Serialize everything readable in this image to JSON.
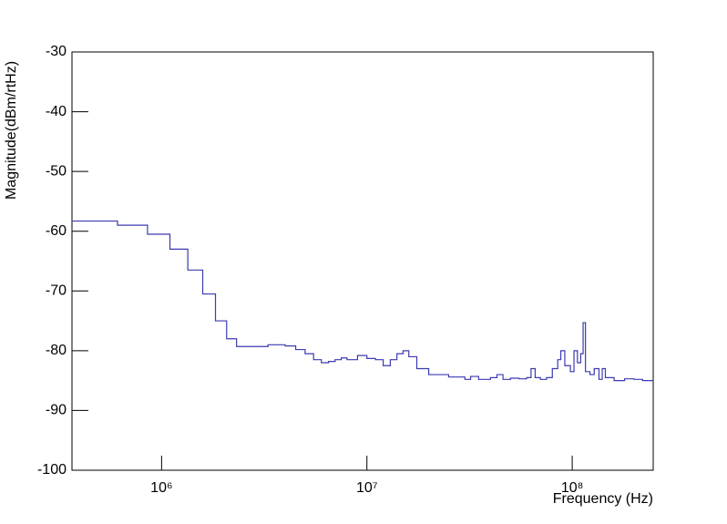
{
  "chart_data": {
    "type": "line",
    "step": true,
    "x_label": "Frequency (Hz)",
    "y_label": "Magnitude(dBm/rtHz)",
    "xlog": true,
    "xlim": [
      366000,
      248000000
    ],
    "ylim": [
      -100,
      -30
    ],
    "xticks": [
      {
        "value": 1000000,
        "label": "10⁶"
      },
      {
        "value": 10000000,
        "label": "10⁷"
      },
      {
        "value": 100000000,
        "label": "10⁸"
      }
    ],
    "yticks": [
      -100,
      -90,
      -80,
      -70,
      -60,
      -50,
      -40,
      -30
    ],
    "color": "#3b3bb0",
    "x": [
      366000,
      610000,
      854000,
      1098000,
      1342000,
      1586000,
      1830000,
      2074000,
      2318000,
      2800000,
      3300000,
      4000000,
      4500000,
      5000000,
      5500000,
      6000000,
      6500000,
      7000000,
      7500000,
      8000000,
      9000000,
      10000000,
      11000000,
      12000000,
      13000000,
      14000000,
      15000000,
      16000000,
      17500000,
      20000000,
      25000000,
      30000000,
      32000000,
      35000000,
      40000000,
      43000000,
      46000000,
      50000000,
      55000000,
      60000000,
      63000000,
      66000000,
      70000000,
      75000000,
      80000000,
      85000000,
      88000000,
      92000000,
      98000000,
      102000000,
      106000000,
      110000000,
      113000000,
      116000000,
      122000000,
      128000000,
      135000000,
      140000000,
      145000000,
      160000000,
      180000000,
      200000000,
      220000000
    ],
    "values": [
      -58.3,
      -59.0,
      -60.5,
      -63.0,
      -66.5,
      -70.5,
      -75.0,
      -78.0,
      -79.3,
      -79.3,
      -79.0,
      -79.2,
      -79.8,
      -80.5,
      -81.5,
      -82.0,
      -81.8,
      -81.5,
      -81.2,
      -81.5,
      -80.8,
      -81.3,
      -81.5,
      -82.5,
      -81.5,
      -80.5,
      -80.0,
      -81.0,
      -83.0,
      -84.0,
      -84.4,
      -84.8,
      -84.3,
      -84.8,
      -84.5,
      -84.0,
      -84.8,
      -84.6,
      -84.7,
      -84.5,
      -83.0,
      -84.5,
      -84.8,
      -84.5,
      -83.0,
      -81.5,
      -80.0,
      -82.5,
      -83.5,
      -80.0,
      -82.0,
      -80.5,
      -75.3,
      -83.5,
      -84.0,
      -83.0,
      -84.8,
      -83.0,
      -84.5,
      -85.0,
      -84.7,
      -84.8,
      -85.0
    ]
  }
}
